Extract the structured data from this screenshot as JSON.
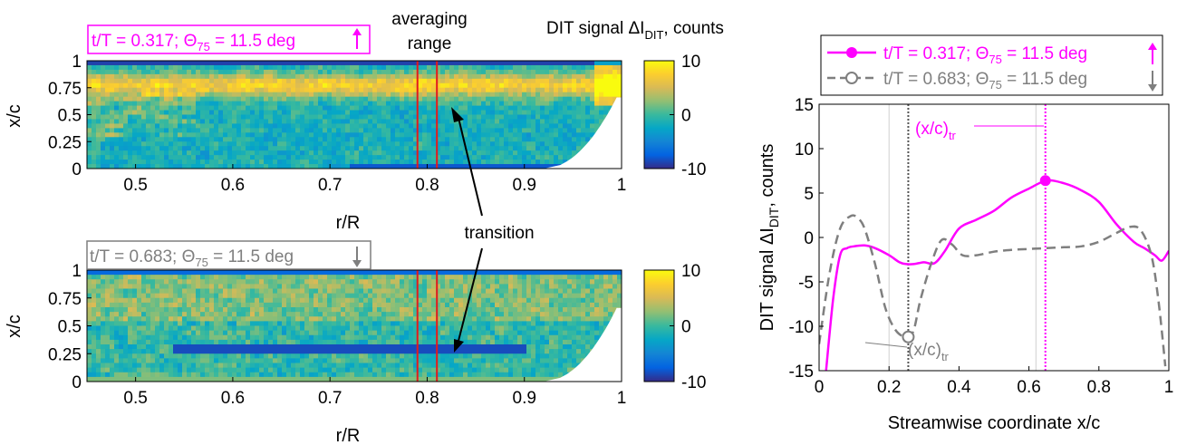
{
  "colors": {
    "magenta": "#ff00ff",
    "gray": "#7f7f7f",
    "red": "#e41a1c",
    "colormap": [
      "#352a87",
      "#0363e1",
      "#1485d4",
      "#06a7c6",
      "#38b99e",
      "#92bf73",
      "#d9ba56",
      "#fcce2e",
      "#f9fb0e"
    ]
  },
  "top_map": {
    "label": "t/T = 0.317; Θ",
    "label_sub": "75",
    "label_tail": " = 11.5 deg",
    "arrow": "up-arrow-icon",
    "xlabel": "r/R",
    "ylabel": "x/c",
    "colorbar_title": "DIT signal ΔI",
    "colorbar_title_sub": "DIT",
    "colorbar_title_tail": ", counts"
  },
  "bottom_map": {
    "label": "t/T = 0.683; Θ",
    "label_sub": "75",
    "label_tail": " = 11.5 deg",
    "arrow": "down-arrow-icon",
    "xlabel": "r/R",
    "ylabel": "x/c"
  },
  "annotations": {
    "averaging_line1": "averaging",
    "averaging_line2": "range",
    "transition": "transition",
    "xc_tr": "(x/c)",
    "xc_tr_sub": "tr"
  },
  "chart_data": [
    {
      "type": "heatmap",
      "id": "top",
      "xlim": [
        0.45,
        1.0
      ],
      "ylim": [
        0,
        1
      ],
      "xticks": [
        "0.5",
        "0.6",
        "0.7",
        "0.8",
        "0.9",
        "1"
      ],
      "xtick_values": [
        0.5,
        0.6,
        0.7,
        0.8,
        0.9,
        1.0
      ],
      "yticks": [
        "0",
        "0.25",
        "0.5",
        "0.75",
        "1"
      ],
      "ytick_values": [
        0,
        0.25,
        0.5,
        0.75,
        1
      ],
      "clim": [
        -10,
        10
      ],
      "cticks": [
        "10",
        "0",
        "-10"
      ],
      "averaging_range": [
        0.79,
        0.81
      ],
      "transition_line": {
        "from_r": 0.45,
        "to_r": 1.0,
        "xc": 0.75
      },
      "title": "t/T = 0.317; Θ75 = 11.5 deg"
    },
    {
      "type": "heatmap",
      "id": "bottom",
      "xlim": [
        0.45,
        1.0
      ],
      "ylim": [
        0,
        1
      ],
      "xticks": [
        "0.5",
        "0.6",
        "0.7",
        "0.8",
        "0.9",
        "1"
      ],
      "xtick_values": [
        0.5,
        0.6,
        0.7,
        0.8,
        0.9,
        1.0
      ],
      "yticks": [
        "0",
        "0.25",
        "0.5",
        "0.75",
        "1"
      ],
      "ytick_values": [
        0,
        0.25,
        0.5,
        0.75,
        1
      ],
      "clim": [
        -10,
        10
      ],
      "cticks": [
        "10",
        "0",
        "-10"
      ],
      "averaging_range": [
        0.79,
        0.81
      ],
      "transition_line": {
        "from_r": 0.54,
        "to_r": 0.9,
        "xc": 0.28
      },
      "title": "t/T = 0.683; Θ75 = 11.5 deg"
    },
    {
      "type": "line",
      "id": "profile",
      "xlabel": "Streamwise coordinate x/c",
      "ylabel": "DIT signal ΔI",
      "ylabel_sub": "DIT",
      "ylabel_tail": ", counts",
      "xlim": [
        0,
        1
      ],
      "ylim": [
        -15,
        15
      ],
      "xticks": [
        "0",
        "0.2",
        "0.4",
        "0.6",
        "0.8",
        "1"
      ],
      "xtick_values": [
        0,
        0.2,
        0.4,
        0.6,
        0.8,
        1
      ],
      "yticks": [
        "15",
        "10",
        "5",
        "0",
        "-5",
        "-10",
        "-15"
      ],
      "ytick_values": [
        15,
        10,
        5,
        0,
        -5,
        -10,
        -15
      ],
      "series": [
        {
          "name": "t/T = 0.317; Θ75 = 11.5 deg",
          "legend_main": "t/T = 0.317; Θ",
          "legend_sub": "75",
          "legend_tail": " = 11.5 deg",
          "arrow": "up",
          "color": "#ff00ff",
          "style": "solid",
          "x": [
            0.02,
            0.04,
            0.06,
            0.08,
            0.1,
            0.13,
            0.16,
            0.2,
            0.23,
            0.25,
            0.27,
            0.3,
            0.33,
            0.36,
            0.4,
            0.45,
            0.5,
            0.55,
            0.6,
            0.65,
            0.7,
            0.75,
            0.8,
            0.85,
            0.9,
            0.93,
            0.96,
            0.98,
            1.0
          ],
          "y": [
            -15,
            -7,
            -2,
            -1.2,
            -1.0,
            -0.9,
            -1.2,
            -2.0,
            -2.8,
            -3.0,
            -3.0,
            -2.8,
            -2.9,
            -1.5,
            1.0,
            2.0,
            3.0,
            4.5,
            5.5,
            6.4,
            6.1,
            5.3,
            4.0,
            1.5,
            -0.5,
            -1.2,
            -2.0,
            -2.6,
            -1.5
          ],
          "marker_x": 0.647,
          "marker_y": 6.4
        },
        {
          "name": "t/T = 0.683; Θ75 = 11.5 deg",
          "legend_main": "t/T = 0.683; Θ",
          "legend_sub": "75",
          "legend_tail": " = 11.5 deg",
          "arrow": "down",
          "color": "#7f7f7f",
          "style": "dashed",
          "x": [
            0.0,
            0.03,
            0.06,
            0.09,
            0.11,
            0.13,
            0.16,
            0.19,
            0.22,
            0.25,
            0.27,
            0.29,
            0.32,
            0.35,
            0.38,
            0.41,
            0.45,
            0.5,
            0.55,
            0.6,
            0.65,
            0.7,
            0.75,
            0.8,
            0.85,
            0.89,
            0.92,
            0.95,
            0.97,
            0.99
          ],
          "y": [
            -12,
            -4,
            1.0,
            2.4,
            2.2,
            1.0,
            -3,
            -8,
            -10.5,
            -11.2,
            -10.5,
            -7,
            -3,
            -0.3,
            -0.8,
            -2.0,
            -2.0,
            -1.6,
            -1.4,
            -1.3,
            -1.2,
            -1.1,
            -1.0,
            -0.5,
            0.5,
            1.2,
            0.8,
            -2,
            -7,
            -14.5
          ],
          "marker_x": 0.255,
          "marker_y": -11.2
        }
      ],
      "vlines": [
        {
          "x": 0.255,
          "color": "#555555"
        },
        {
          "x": 0.647,
          "color": "#ff00ff"
        }
      ],
      "faint_vlines": [
        0.2,
        0.62
      ]
    }
  ]
}
